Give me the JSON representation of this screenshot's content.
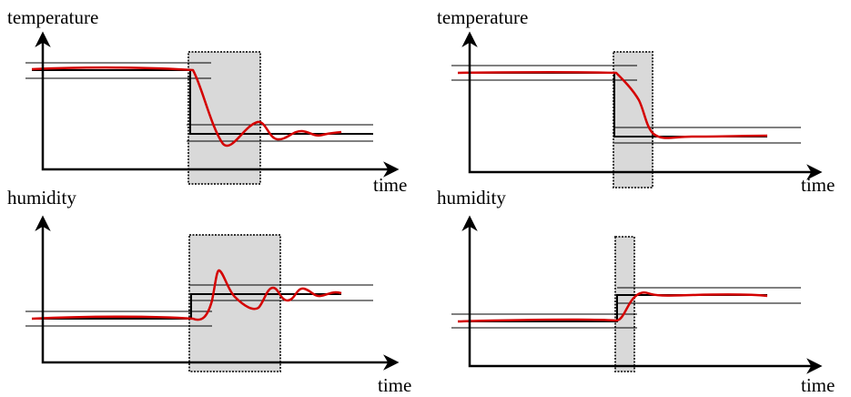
{
  "panels": [
    {
      "y_label": "temperature",
      "x_label": "time"
    },
    {
      "y_label": "temperature",
      "x_label": "time"
    },
    {
      "y_label": "humidity",
      "x_label": "time"
    },
    {
      "y_label": "humidity",
      "x_label": "time"
    }
  ]
}
